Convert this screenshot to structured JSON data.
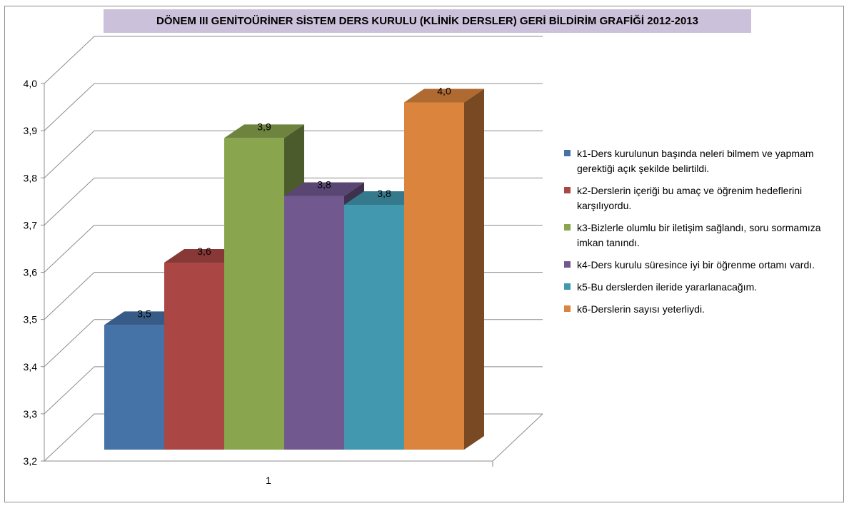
{
  "chart_data": {
    "type": "bar",
    "title": "DÖNEM III GENİTOÜRİNER SİSTEM DERS KURULU (KLİNİK DERSLER) GERİ BİLDİRİM GRAFİĞİ 2012-2013",
    "categories": [
      "1"
    ],
    "series": [
      {
        "name": "k1-Ders kurulunun başında neleri bilmem ve yapmam gerektiği açık şekilde belirtildi.",
        "values": [
          3.48
        ],
        "label": "3,5",
        "color": "#4572a7"
      },
      {
        "name": "k2-Derslerin içeriği bu amaç ve öğrenim hedeflerini karşılıyordu.",
        "values": [
          3.62
        ],
        "label": "3,6",
        "color": "#aa4643"
      },
      {
        "name": "k3-Bizlerle olumlu bir iletişim sağlandı, soru sormamıza imkan tanındı.",
        "values": [
          3.9
        ],
        "label": "3,9",
        "color": "#89a54e"
      },
      {
        "name": "k4-Ders kurulu süresince iyi bir öğrenme ortamı vardı.",
        "values": [
          3.77
        ],
        "label": "3,8",
        "color": "#71588f"
      },
      {
        "name": "k5-Bu derslerden ileride yararlanacağım.",
        "values": [
          3.75
        ],
        "label": "3,8",
        "color": "#4198af"
      },
      {
        "name": "k6-Derslerin sayısı yeterliydi.",
        "values": [
          3.98
        ],
        "label": "4,0",
        "color": "#db843d"
      }
    ],
    "yticks": [
      "3,2",
      "3,3",
      "3,4",
      "3,5",
      "3,6",
      "3,7",
      "3,8",
      "3,9",
      "4,0"
    ],
    "ylim": [
      3.2,
      4.0
    ],
    "xlabel": "",
    "ylabel": "",
    "grid": true,
    "legend_position": "right"
  }
}
